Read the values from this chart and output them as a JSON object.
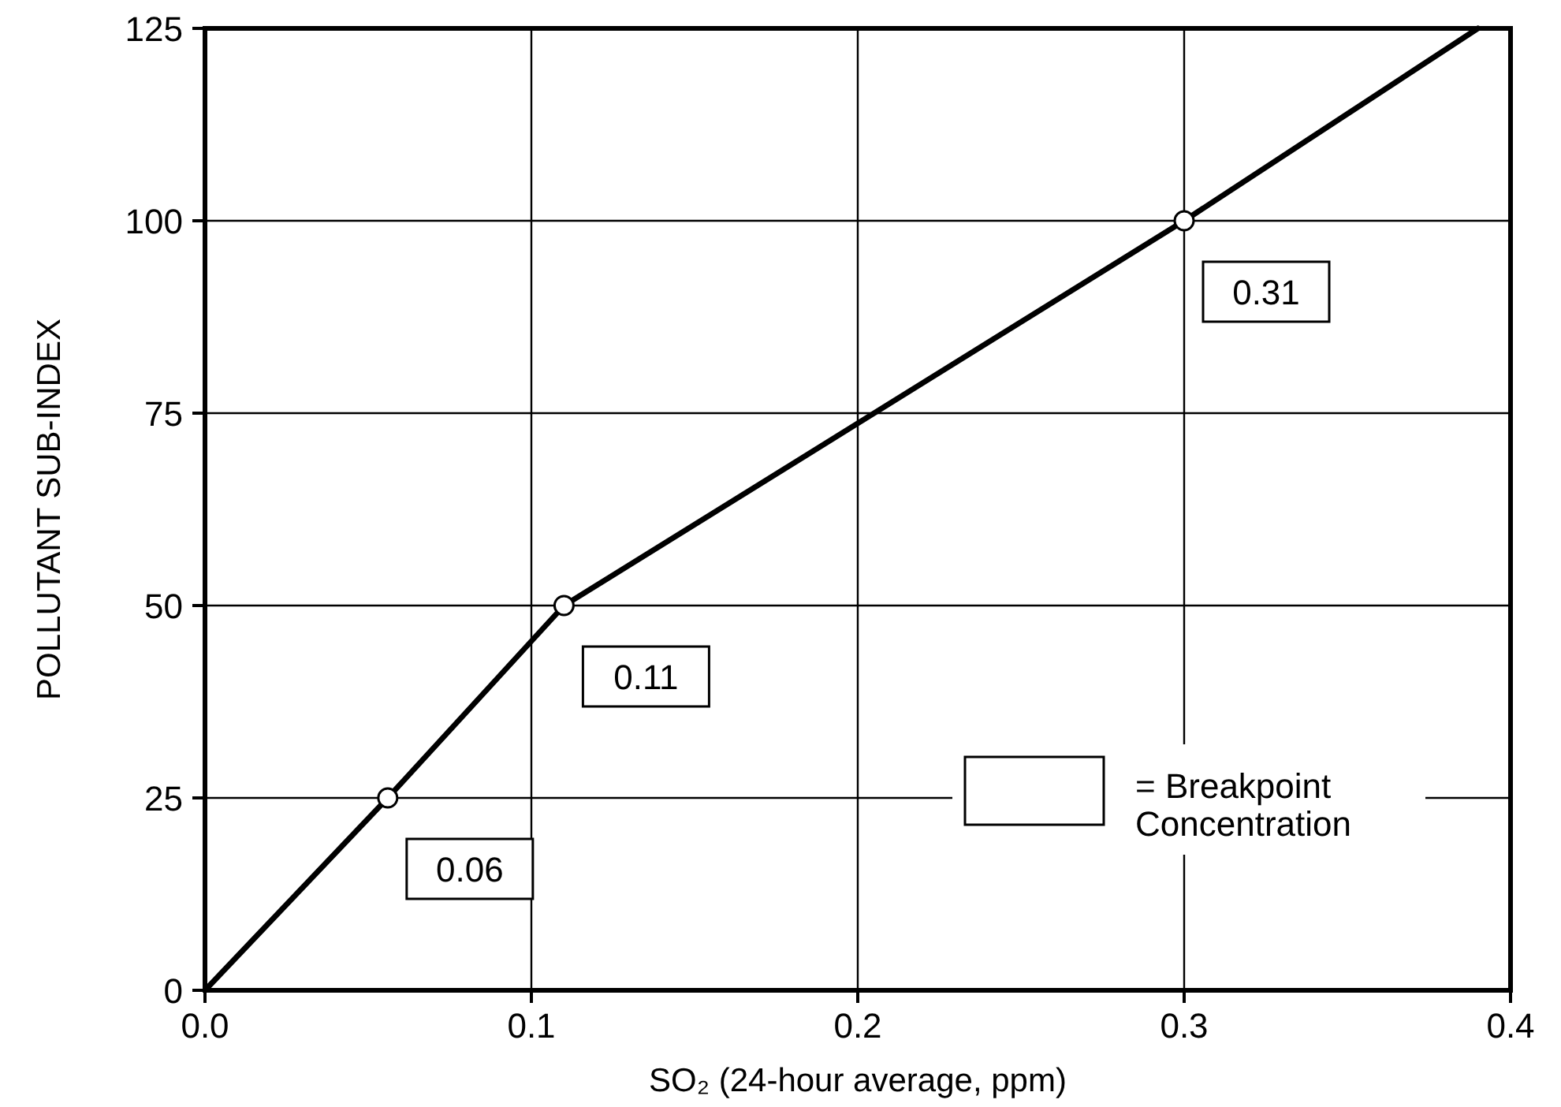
{
  "chart_data": {
    "type": "line",
    "xlabel": "SO₂ (24-hour average, ppm)",
    "ylabel": "POLLUTANT SUB-INDEX",
    "xlim": [
      0,
      0.4
    ],
    "xticks": [
      {
        "value": 0,
        "label": "0.0"
      },
      0.1,
      0.2,
      0.3,
      0.4
    ],
    "ylim": [
      0,
      125
    ],
    "yticks": [
      0,
      25,
      50,
      75,
      100,
      125
    ],
    "grid": true,
    "series": [
      {
        "color": "#000000",
        "marker": "none",
        "line_style": "solid",
        "x": [
          0,
          0.056,
          0.11,
          0.3,
          0.39
        ],
        "values": [
          0,
          25,
          50,
          100,
          125
        ]
      },
      {
        "type": "scatter",
        "color": "#ffffff",
        "marker": "circle",
        "x": [
          0.056,
          0.11,
          0.3
        ],
        "values": [
          25,
          50,
          100
        ]
      }
    ],
    "annotations": [
      {
        "text": "0.06",
        "x": 0.056,
        "y": 25
      },
      {
        "text": "0.11",
        "x": 0.11,
        "y": 50
      },
      {
        "text": "0.31",
        "x": 0.3,
        "y": 100
      },
      "= Breakpoint Concentration"
    ]
  }
}
